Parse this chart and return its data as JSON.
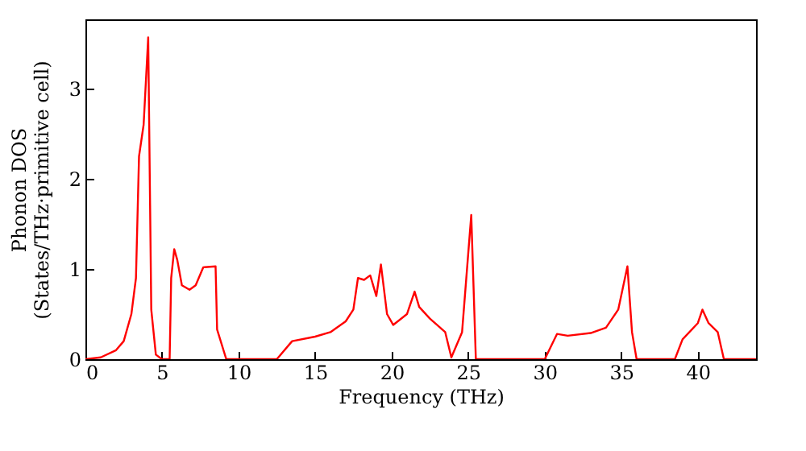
{
  "chart_data": {
    "type": "line",
    "xlabel": "Frequency (THz)",
    "ylabel": "Phonon DOS\n(States/THz·primitive cell)",
    "x": [
      0,
      1,
      2,
      2.5,
      3,
      3.3,
      3.5,
      3.8,
      4.1,
      4.3,
      4.6,
      5,
      5.5,
      5.6,
      5.8,
      6.0,
      6.3,
      6.8,
      7.2,
      7.7,
      8.5,
      8.6,
      9.2,
      12.5,
      13.5,
      15,
      16,
      17,
      17.5,
      17.8,
      18.2,
      18.6,
      19,
      19.3,
      19.7,
      20.1,
      21,
      21.5,
      21.8,
      22.5,
      23.5,
      23.9,
      24.6,
      25.2,
      25.5,
      30,
      30.8,
      31.5,
      33,
      34,
      34.8,
      35.4,
      35.7,
      36,
      38.5,
      39,
      40,
      40.3,
      40.7,
      41.3,
      41.7,
      43.8
    ],
    "series": [
      {
        "color": "#ff0000",
        "values": [
          0,
          0.02,
          0.1,
          0.2,
          0.5,
          0.9,
          2.25,
          2.6,
          3.57,
          0.55,
          0.05,
          0,
          0,
          0.9,
          1.22,
          1.1,
          0.82,
          0.77,
          0.82,
          1.02,
          1.03,
          0.33,
          0,
          0,
          0.2,
          0.25,
          0.3,
          0.42,
          0.55,
          0.9,
          0.88,
          0.93,
          0.7,
          1.05,
          0.5,
          0.38,
          0.5,
          0.75,
          0.58,
          0.45,
          0.3,
          0.02,
          0.3,
          1.6,
          0,
          0,
          0.28,
          0.26,
          0.29,
          0.35,
          0.55,
          1.03,
          0.3,
          0,
          0,
          0.22,
          0.4,
          0.55,
          0.4,
          0.3,
          0,
          0
        ]
      }
    ],
    "xlim": [
      0,
      43.8
    ],
    "xticks": [
      0,
      5,
      10,
      15,
      20,
      25,
      30,
      35,
      40
    ],
    "ylim": [
      0,
      3.77
    ],
    "yticks": [
      0,
      1,
      2,
      3
    ],
    "grid": false,
    "line_style": "solid"
  }
}
